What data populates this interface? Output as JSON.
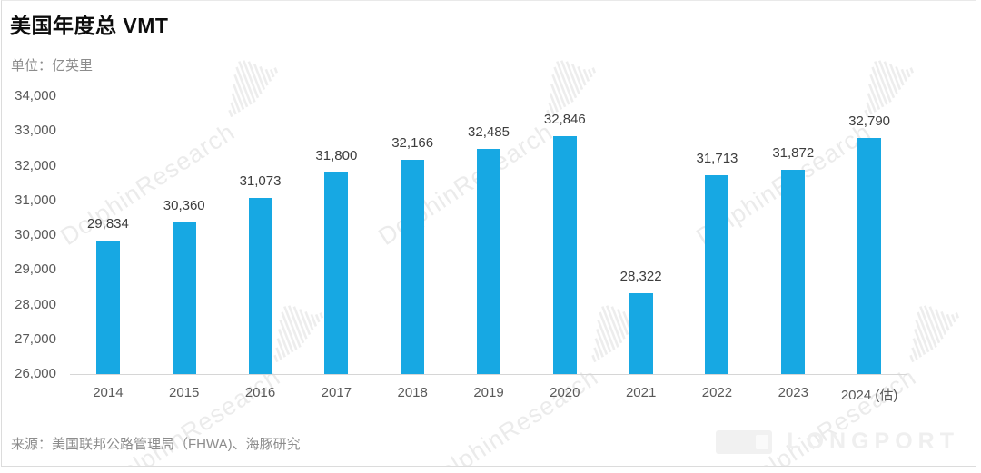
{
  "header": {
    "title": "美国年度总 VMT",
    "unit_label": "单位：亿英里"
  },
  "chart_data": {
    "type": "bar",
    "title": "美国年度总 VMT",
    "ylabel": "亿英里",
    "categories": [
      "2014",
      "2015",
      "2016",
      "2017",
      "2018",
      "2019",
      "2020",
      "2021",
      "2022",
      "2023",
      "2024 (估)"
    ],
    "values": [
      29834,
      30360,
      31073,
      31800,
      32166,
      32485,
      32846,
      28322,
      31713,
      31872,
      32790
    ],
    "value_labels": [
      "29,834",
      "30,360",
      "31,073",
      "31,800",
      "32,166",
      "32,485",
      "32,846",
      "28,322",
      "31,713",
      "31,872",
      "32,790"
    ],
    "ylim": [
      26000,
      34000
    ],
    "ytick_step": 1000,
    "ytick_labels": [
      "34,000",
      "33,000",
      "32,000",
      "31,000",
      "30,000",
      "29,000",
      "28,000",
      "27,000",
      "26,000"
    ],
    "grid": false,
    "legend": "none",
    "bar_color": "#17A8E3"
  },
  "footer": {
    "source": "来源：美国联邦公路管理局（FHWA)、海豚研究"
  },
  "watermark": {
    "text": "DolphinResearch",
    "icon": "dolphin-bars-icon"
  },
  "logo": {
    "text": "LONGPORT",
    "icon": "longport-logo-icon"
  },
  "colors": {
    "bar": "#17A8E3",
    "axis_line": "#d6d6d6",
    "tick_label": "#595959",
    "value_label": "#3d3d3d",
    "muted_text": "#8c8c8c"
  }
}
